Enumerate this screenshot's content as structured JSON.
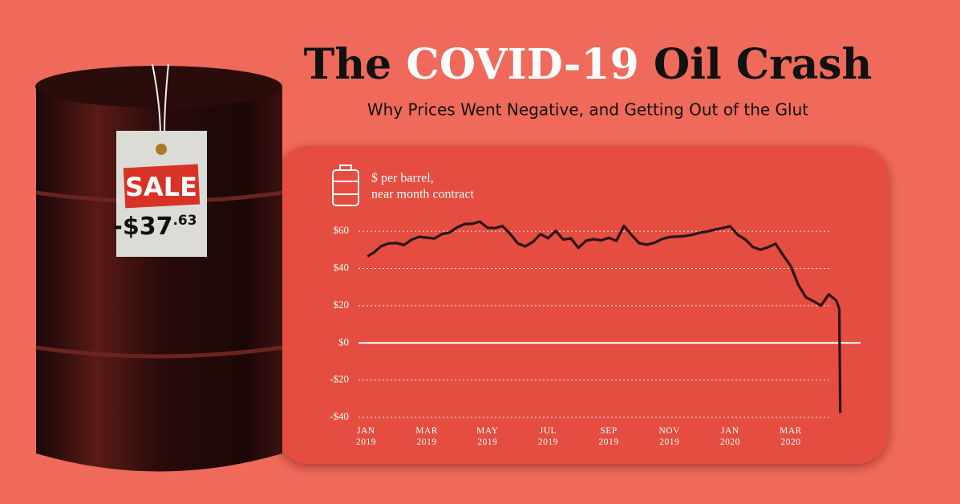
{
  "title": {
    "before": "The",
    "highlight": "COVID-19",
    "after": "Oil Crash"
  },
  "subtitle": "Why Prices Went Negative, and Getting Out of the Glut",
  "tag": {
    "word": "SALE",
    "price": "-$37",
    "cents": ".63"
  },
  "chart_data": {
    "type": "line",
    "y_label": [
      "$ per barrel,",
      "near month contract"
    ],
    "color": "#2b1416",
    "x": [
      0.05,
      0.25,
      0.5,
      0.75,
      1,
      1.25,
      1.5,
      1.75,
      2,
      2.25,
      2.5,
      2.75,
      3,
      3.25,
      3.5,
      3.75,
      4,
      4.25,
      4.5,
      4.75,
      5,
      5.25,
      5.5,
      5.75,
      6,
      6.25,
      6.5,
      6.75,
      7,
      7.25,
      7.5,
      7.75,
      8,
      8.25,
      8.5,
      8.75,
      9,
      9.25,
      9.5,
      9.75,
      10,
      10.25,
      10.5,
      10.75,
      11,
      11.25,
      11.5,
      11.75,
      12,
      12.25,
      12.5,
      12.75,
      13,
      13.25,
      13.5,
      13.75,
      14,
      14.25,
      14.5,
      14.75,
      15,
      15.25,
      15.5,
      15.6,
      15.63
    ],
    "values": [
      46.5,
      48.5,
      52,
      53.5,
      53.7,
      52.6,
      55.5,
      57,
      56.6,
      56.1,
      58.5,
      59.3,
      62.1,
      63.9,
      64,
      65.2,
      61.9,
      61.7,
      62.8,
      58.6,
      53.5,
      51.9,
      54.3,
      58.5,
      56.3,
      60.2,
      55.6,
      56.2,
      51.1,
      54.9,
      55.7,
      55.1,
      56.5,
      54.9,
      62.9,
      58.1,
      53.6,
      52.8,
      53.8,
      55.8,
      56.9,
      57.1,
      57.4,
      58.1,
      59.2,
      59.9,
      60.9,
      61.7,
      62.7,
      58.1,
      55.6,
      51.6,
      50.1,
      51.4,
      53.3,
      47.1,
      41.3,
      31.1,
      24.5,
      22.4,
      20.1,
      26.1,
      22.8,
      18.3,
      -37.63
    ],
    "xlim": [
      -0.25,
      16.3
    ],
    "xticks": [
      {
        "value": 0,
        "label": "JAN 2019"
      },
      {
        "value": 2,
        "label": "MAR 2019"
      },
      {
        "value": 4,
        "label": "MAY 2019"
      },
      {
        "value": 6,
        "label": "JUL 2019"
      },
      {
        "value": 8,
        "label": "SEP 2019"
      },
      {
        "value": 10,
        "label": "NOV 2019"
      },
      {
        "value": 12,
        "label": "JAN 2020"
      },
      {
        "value": 14,
        "label": "MAR 2020"
      }
    ],
    "ylim": [
      -40,
      70
    ],
    "yticks": [
      {
        "value": -40,
        "label": "-$40"
      },
      {
        "value": -20,
        "label": "-$20"
      },
      {
        "value": 0,
        "label": "$0"
      },
      {
        "value": 20,
        "label": "$20"
      },
      {
        "value": 40,
        "label": "$40"
      },
      {
        "value": 60,
        "label": "$60"
      }
    ],
    "grid": true
  }
}
